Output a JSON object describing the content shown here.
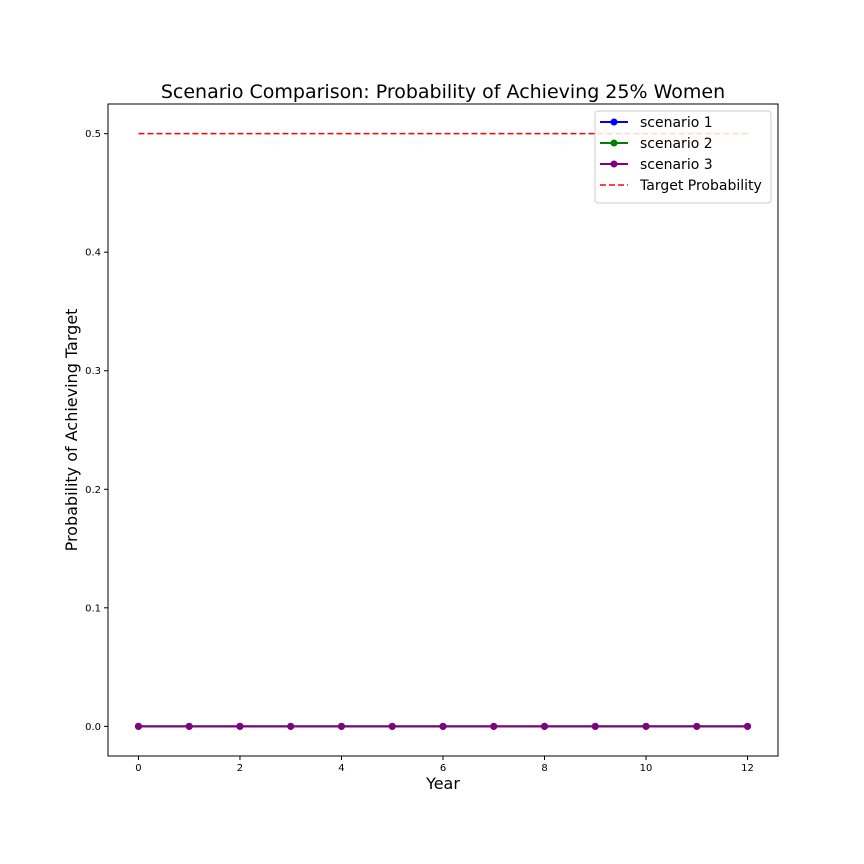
{
  "chart_data": {
    "type": "line",
    "title": "Scenario Comparison: Probability of Achieving 25% Women",
    "xlabel": "Year",
    "ylabel": "Probability of Achieving Target",
    "xlim": [
      -0.6,
      12.6
    ],
    "ylim": [
      -0.025,
      0.525
    ],
    "xticks": [
      0,
      2,
      4,
      6,
      8,
      10,
      12
    ],
    "xtick_labels": [
      "0",
      "2",
      "4",
      "6",
      "8",
      "10",
      "12"
    ],
    "yticks": [
      0.0,
      0.1,
      0.2,
      0.3,
      0.4,
      0.5
    ],
    "ytick_labels": [
      "0.0",
      "0.1",
      "0.2",
      "0.3",
      "0.4",
      "0.5"
    ],
    "x": [
      0,
      1,
      2,
      3,
      4,
      5,
      6,
      7,
      8,
      9,
      10,
      11,
      12
    ],
    "series": [
      {
        "name": "scenario 1",
        "color": "#0000ff",
        "style": "solid-marker",
        "values": [
          0,
          0,
          0,
          0,
          0,
          0,
          0,
          0,
          0,
          0,
          0,
          0,
          0
        ]
      },
      {
        "name": "scenario 2",
        "color": "#008000",
        "style": "solid-marker",
        "values": [
          0,
          0,
          0,
          0,
          0,
          0,
          0,
          0,
          0,
          0,
          0,
          0,
          0
        ]
      },
      {
        "name": "scenario 3",
        "color": "#800080",
        "style": "solid-marker",
        "values": [
          0,
          0,
          0,
          0,
          0,
          0,
          0,
          0,
          0,
          0,
          0,
          0,
          0
        ]
      }
    ],
    "reference_line": {
      "name": "Target Probability",
      "color": "#ff0000",
      "style": "dashed",
      "x": [
        0,
        12
      ],
      "value": 0.5
    },
    "legend_position": "top-right",
    "grid": false
  }
}
